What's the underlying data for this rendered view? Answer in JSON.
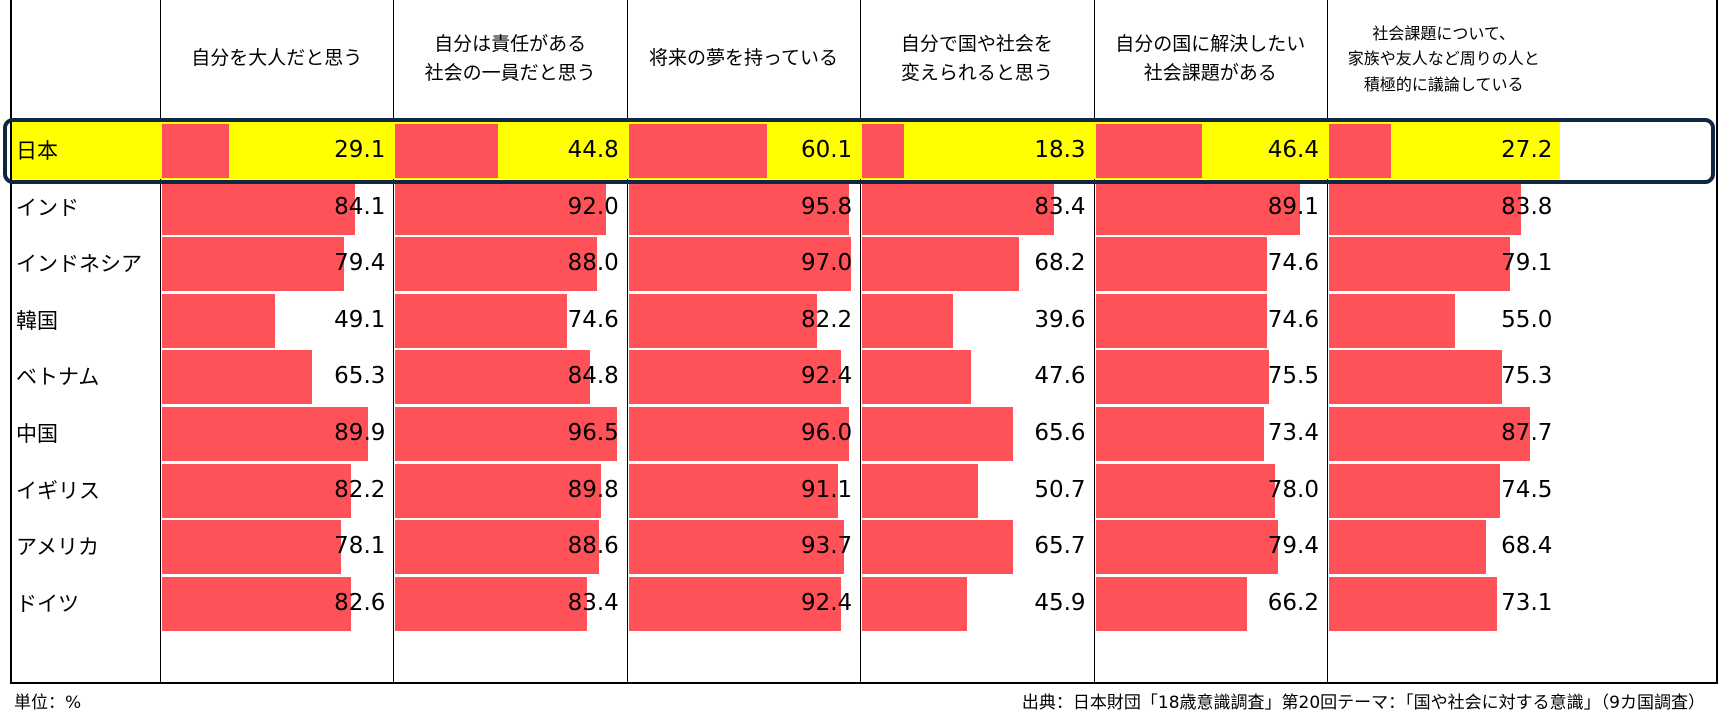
{
  "chart_data": {
    "type": "table",
    "categories": [
      "日本",
      "インド",
      "インドネシア",
      "韓国",
      "ベトナム",
      "中国",
      "イギリス",
      "アメリカ",
      "ドイツ"
    ],
    "series": [
      {
        "name": "自分を大人だと思う",
        "values": [
          29.1,
          84.1,
          79.4,
          49.1,
          65.3,
          89.9,
          82.2,
          78.1,
          82.6
        ]
      },
      {
        "name": "自分は責任がある\n社会の一員だと思う",
        "values": [
          44.8,
          92.0,
          88.0,
          74.6,
          84.8,
          96.5,
          89.8,
          88.6,
          83.4
        ]
      },
      {
        "name": "将来の夢を持っている",
        "values": [
          60.1,
          95.8,
          97.0,
          82.2,
          92.4,
          96.0,
          91.1,
          93.7,
          92.4
        ]
      },
      {
        "name": "自分で国や社会を\n変えられると思う",
        "values": [
          18.3,
          83.4,
          68.2,
          39.6,
          47.6,
          65.6,
          50.7,
          65.7,
          45.9
        ]
      },
      {
        "name": "自分の国に解決したい\n社会課題がある",
        "values": [
          46.4,
          89.1,
          74.6,
          74.6,
          75.5,
          73.4,
          78.0,
          79.4,
          66.2
        ]
      },
      {
        "name": "社会課題について、\n家族や友人など周りの人と\n積極的に議論している",
        "values": [
          27.2,
          83.8,
          79.1,
          55.0,
          75.3,
          87.7,
          74.5,
          68.4,
          73.1
        ]
      }
    ],
    "highlighted_category": "日本",
    "bar_max": 100
  },
  "footer": {
    "unit": "単位：%",
    "source": "出典：日本財団「18歳意識調査」第20回テーマ：「国や社会に対する意識」（9カ国調査）"
  },
  "colors": {
    "bar": "#ff5258",
    "highlight_fill": "#ffff00",
    "highlight_border": "#0f2744"
  }
}
